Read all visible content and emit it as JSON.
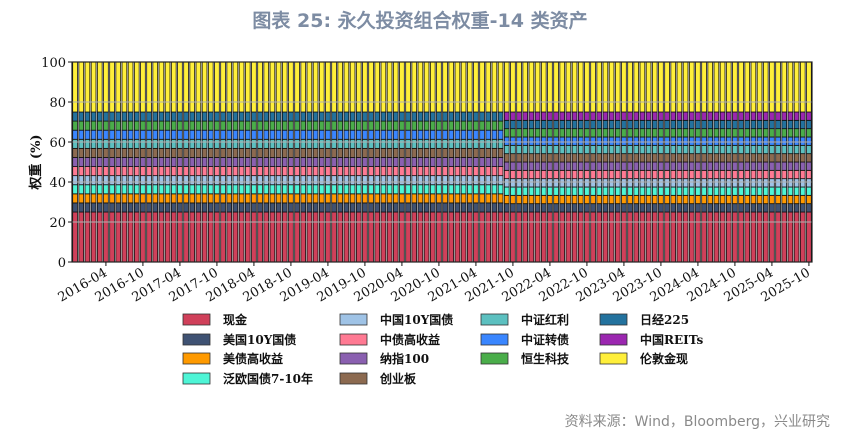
{
  "chart_data": {
    "type": "bar",
    "stacked": true,
    "title": "图表 25: 永久投资组合权重-14 类资产",
    "ylabel": "权重 (%)",
    "xlabel": "",
    "ylim": [
      0,
      100
    ],
    "yticks": [
      0,
      20,
      40,
      60,
      80,
      100
    ],
    "grid": true,
    "legend_position": "bottom",
    "x_start": "2015-11",
    "x_end": "2025-10",
    "frequency": "monthly",
    "xtick_labels": [
      "2016-04",
      "2016-10",
      "2017-04",
      "2017-10",
      "2018-04",
      "2018-10",
      "2019-04",
      "2019-10",
      "2020-04",
      "2020-10",
      "2021-04",
      "2021-10",
      "2022-04",
      "2022-10",
      "2023-04",
      "2023-10",
      "2024-04",
      "2024-10",
      "2025-04",
      "2025-10"
    ],
    "series": [
      {
        "name": "现金",
        "color": "#d0405a"
      },
      {
        "name": "美国10Y国债",
        "color": "#3f5273"
      },
      {
        "name": "美债高收益",
        "color": "#ff9a00"
      },
      {
        "name": "泛欧国债7-10年",
        "color": "#4ef5d6"
      },
      {
        "name": "中国10Y国债",
        "color": "#9fc3e6"
      },
      {
        "name": "中债高收益",
        "color": "#ff7a93"
      },
      {
        "name": "纳指100",
        "color": "#8a60b0"
      },
      {
        "name": "创业板",
        "color": "#8c6a50"
      },
      {
        "name": "中证红利",
        "color": "#5cc0c0"
      },
      {
        "name": "中证转债",
        "color": "#3a86ff"
      },
      {
        "name": "恒生科技",
        "color": "#4aad4a"
      },
      {
        "name": "日经225",
        "color": "#23729e"
      },
      {
        "name": "中国REITs",
        "color": "#9b27b0"
      },
      {
        "name": "伦敦金现",
        "color": "#ffef3a"
      }
    ],
    "regimes": [
      {
        "from": "2015-11",
        "to": "2021-08",
        "values": [
          25,
          4.545,
          4.545,
          4.545,
          4.545,
          4.545,
          4.545,
          4.545,
          4.545,
          4.545,
          4.545,
          4.545,
          0,
          25
        ]
      },
      {
        "from": "2021-09",
        "to": "2025-10",
        "values": [
          25,
          4.167,
          4.167,
          4.167,
          4.167,
          4.167,
          4.167,
          4.167,
          4.167,
          4.167,
          4.167,
          4.167,
          4.167,
          25
        ]
      }
    ],
    "source": "资料来源：Wind，Bloomberg，兴业研究"
  }
}
